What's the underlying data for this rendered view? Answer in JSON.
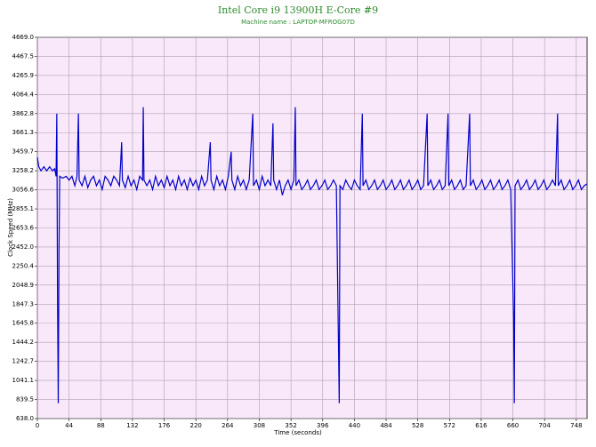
{
  "chart_data": {
    "type": "line",
    "title": "Intel Core i9 13900H E-Core #9",
    "subtitle": "Machine name : LAPTOP-MFROG07D",
    "x_label": "Time (seconds)",
    "y_label": "Clock Speed (MHz)",
    "color": "#0000c8",
    "grid": true,
    "xlim": [
      0,
      763
    ],
    "ylim": [
      638,
      4669
    ],
    "xticks": [
      0,
      44,
      88,
      132,
      176,
      220,
      264,
      308,
      352,
      396,
      440,
      484,
      528,
      572,
      616,
      660,
      704,
      748
    ],
    "yticks": [
      {
        "value": 638,
        "label": "638.0"
      },
      839.5,
      1041.1,
      1242.7,
      1444.2,
      1645.8,
      1847.3,
      2048.9,
      2250.4,
      {
        "value": 2452,
        "label": "2452.0"
      },
      2653.6,
      2855.1,
      3056.6,
      3258.2,
      3459.7,
      3661.3,
      3862.8,
      4064.4,
      4265.9,
      4467.5,
      {
        "value": 4669,
        "label": "4669.0"
      }
    ],
    "x": [
      0,
      2,
      5,
      9,
      13,
      17,
      21,
      24,
      26,
      27,
      28,
      29,
      30,
      31,
      35,
      40,
      44,
      48,
      52,
      55,
      57,
      58,
      62,
      66,
      70,
      74,
      78,
      82,
      86,
      90,
      94,
      98,
      102,
      106,
      110,
      114,
      117,
      118,
      122,
      126,
      130,
      134,
      138,
      142,
      146,
      147,
      148,
      152,
      156,
      160,
      164,
      168,
      172,
      176,
      180,
      184,
      188,
      192,
      196,
      200,
      204,
      208,
      212,
      216,
      220,
      224,
      228,
      232,
      236,
      240,
      241,
      245,
      249,
      253,
      257,
      261,
      265,
      269,
      270,
      274,
      278,
      282,
      286,
      290,
      294,
      299,
      300,
      304,
      308,
      312,
      316,
      320,
      324,
      327,
      328,
      332,
      336,
      340,
      344,
      348,
      352,
      356,
      358,
      359,
      363,
      367,
      371,
      375,
      379,
      383,
      387,
      391,
      395,
      399,
      403,
      407,
      411,
      415,
      419,
      420,
      424,
      428,
      432,
      436,
      440,
      444,
      448,
      451,
      452,
      456,
      460,
      464,
      468,
      472,
      476,
      480,
      484,
      488,
      492,
      496,
      500,
      504,
      508,
      512,
      516,
      520,
      524,
      528,
      532,
      536,
      541,
      542,
      546,
      550,
      554,
      558,
      562,
      566,
      570,
      571,
      575,
      579,
      583,
      587,
      591,
      595,
      600,
      601,
      605,
      609,
      613,
      617,
      621,
      625,
      629,
      633,
      637,
      641,
      645,
      649,
      653,
      657,
      661,
      662,
      663,
      667,
      671,
      675,
      679,
      683,
      687,
      691,
      695,
      699,
      703,
      707,
      711,
      715,
      719,
      722,
      723,
      727,
      731,
      735,
      739,
      743,
      747,
      751,
      755,
      759,
      763
    ],
    "values": [
      3400,
      3300,
      3258,
      3300,
      3258,
      3300,
      3258,
      3280,
      3200,
      3862,
      1900,
      800,
      2380,
      3200,
      3180,
      3200,
      3160,
      3200,
      3100,
      3200,
      3862,
      3160,
      3100,
      3200,
      3080,
      3160,
      3200,
      3100,
      3160,
      3060,
      3200,
      3160,
      3100,
      3200,
      3160,
      3100,
      3560,
      3160,
      3080,
      3200,
      3100,
      3160,
      3060,
      3200,
      3160,
      3930,
      3160,
      3100,
      3160,
      3060,
      3200,
      3100,
      3160,
      3080,
      3200,
      3100,
      3160,
      3060,
      3200,
      3100,
      3160,
      3060,
      3180,
      3100,
      3160,
      3060,
      3200,
      3100,
      3160,
      3560,
      3160,
      3060,
      3200,
      3100,
      3160,
      3060,
      3200,
      3460,
      3160,
      3060,
      3200,
      3100,
      3160,
      3060,
      3160,
      3862,
      3100,
      3160,
      3060,
      3200,
      3100,
      3160,
      3100,
      3760,
      3160,
      3060,
      3160,
      3000,
      3100,
      3160,
      3060,
      3160,
      3930,
      3100,
      3160,
      3060,
      3100,
      3160,
      3060,
      3100,
      3160,
      3060,
      3100,
      3160,
      3060,
      3100,
      3160,
      3100,
      800,
      3100,
      3060,
      3160,
      3100,
      3060,
      3160,
      3100,
      3060,
      3862,
      3100,
      3160,
      3060,
      3100,
      3160,
      3060,
      3100,
      3160,
      3060,
      3100,
      3160,
      3060,
      3100,
      3160,
      3060,
      3100,
      3160,
      3060,
      3100,
      3160,
      3060,
      3100,
      3862,
      3100,
      3160,
      3060,
      3100,
      3160,
      3060,
      3100,
      3862,
      3100,
      3160,
      3060,
      3100,
      3160,
      3060,
      3100,
      3862,
      3100,
      3160,
      3060,
      3100,
      3160,
      3060,
      3100,
      3160,
      3060,
      3100,
      3160,
      3060,
      3100,
      3160,
      3060,
      1700,
      800,
      3100,
      3160,
      3060,
      3100,
      3160,
      3060,
      3100,
      3160,
      3060,
      3100,
      3160,
      3060,
      3100,
      3160,
      3100,
      3862,
      3100,
      3160,
      3060,
      3100,
      3160,
      3060,
      3100,
      3160,
      3060,
      3100,
      3120
    ]
  }
}
